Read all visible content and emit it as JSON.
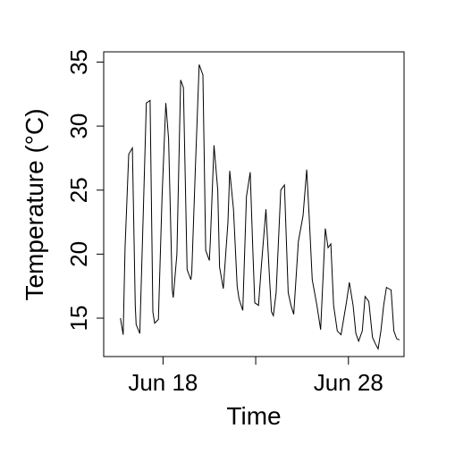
{
  "chart_data": {
    "type": "line",
    "title": "",
    "xlabel": "Time",
    "ylabel": "Temperature (°C)",
    "ylim": [
      12.0,
      35.8
    ],
    "xlim": [
      14.8,
      31.0
    ],
    "x_ticks": [
      {
        "value": 18,
        "label": "Jun 18"
      },
      {
        "value": 23,
        "label": ""
      },
      {
        "value": 28,
        "label": "Jun 28"
      }
    ],
    "y_ticks": [
      {
        "value": 15,
        "label": "15"
      },
      {
        "value": 20,
        "label": "20"
      },
      {
        "value": 25,
        "label": "25"
      },
      {
        "value": 30,
        "label": "30"
      },
      {
        "value": 35,
        "label": "35"
      }
    ],
    "grid": false,
    "legend": "none",
    "line_color": "#000000",
    "series": [
      {
        "x": [
          15.7,
          15.85,
          15.95,
          16.15,
          16.35,
          16.5,
          16.55,
          16.75,
          16.95,
          17.1,
          17.3,
          17.45,
          17.55,
          17.75,
          17.95,
          18.15,
          18.3,
          18.5,
          18.55,
          18.75,
          18.95,
          19.1,
          19.3,
          19.5,
          19.55,
          19.75,
          19.95,
          20.15,
          20.3,
          20.5,
          20.55,
          20.75,
          20.95,
          21.05,
          21.25,
          21.5,
          21.6,
          21.8,
          22.0,
          22.1,
          22.3,
          22.5,
          22.7,
          22.85,
          22.95,
          23.15,
          23.3,
          23.55,
          23.75,
          23.85,
          23.95,
          24.1,
          24.35,
          24.55,
          24.75,
          24.9,
          25.05,
          25.3,
          25.55,
          25.75,
          25.9,
          26.05,
          26.3,
          26.5,
          26.75,
          26.9,
          27.05,
          27.2,
          27.4,
          27.6,
          27.75,
          27.9,
          28.05,
          28.25,
          28.4,
          28.55,
          28.75,
          28.9,
          29.1,
          29.3,
          29.45,
          29.6,
          29.75,
          29.9,
          30.05,
          30.3,
          30.45,
          30.6,
          30.75
        ],
        "values": [
          15.0,
          13.7,
          20.5,
          27.8,
          28.3,
          16.0,
          14.5,
          13.8,
          24.0,
          31.8,
          32.0,
          15.5,
          14.6,
          14.9,
          24.5,
          31.8,
          29.0,
          17.2,
          16.6,
          20.0,
          33.6,
          33.0,
          18.8,
          18.0,
          18.5,
          27.0,
          34.8,
          34.0,
          20.3,
          19.5,
          21.0,
          28.5,
          25.0,
          19.0,
          17.3,
          22.5,
          26.5,
          23.5,
          17.5,
          16.5,
          15.6,
          24.5,
          26.4,
          20.0,
          16.2,
          16.0,
          19.0,
          23.5,
          18.0,
          15.5,
          15.2,
          17.0,
          25.0,
          25.4,
          17.0,
          16.0,
          15.3,
          21.0,
          23.0,
          26.6,
          22.5,
          18.0,
          16.0,
          14.1,
          22.0,
          20.5,
          20.8,
          16.0,
          14.0,
          13.7,
          15.0,
          16.3,
          17.8,
          16.0,
          13.8,
          13.2,
          14.0,
          16.7,
          16.3,
          13.5,
          13.0,
          12.6,
          14.0,
          16.0,
          17.4,
          17.2,
          14.0,
          13.4,
          13.3
        ]
      }
    ]
  }
}
